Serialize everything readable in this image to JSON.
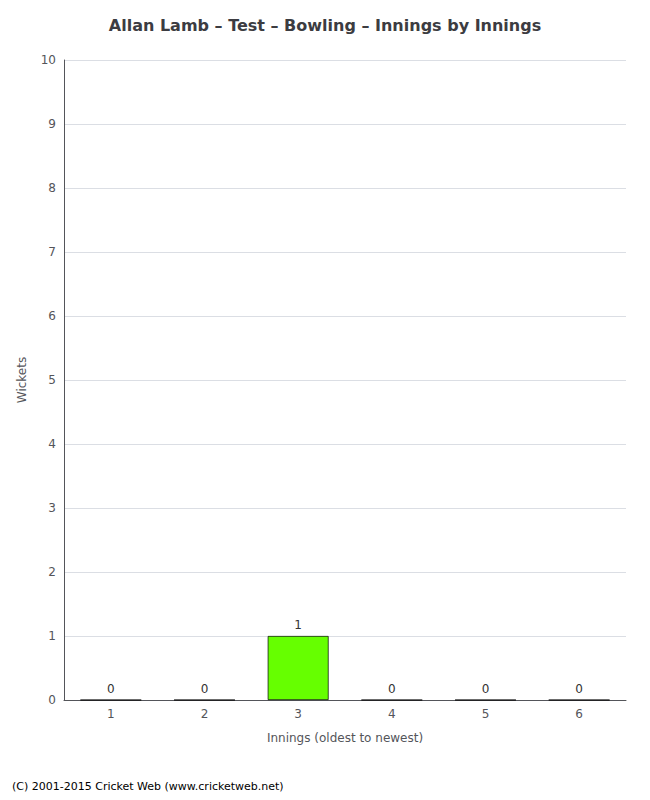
{
  "chart_data": {
    "type": "bar",
    "title": "Allan Lamb – Test – Bowling – Innings by Innings",
    "xlabel": "Innings (oldest to newest)",
    "ylabel": "Wickets",
    "categories": [
      1,
      2,
      3,
      4,
      5,
      6
    ],
    "values": [
      0,
      0,
      1,
      0,
      0,
      0
    ],
    "color": "#66FF00",
    "ylim": [
      0,
      10
    ],
    "yticks": [
      0,
      1,
      2,
      3,
      4,
      5,
      6,
      7,
      8,
      9,
      10
    ],
    "grid": true,
    "data_labels": true,
    "annotations": [
      "(C) 2001-2015 Cricket Web (www.cricketweb.net)"
    ]
  }
}
